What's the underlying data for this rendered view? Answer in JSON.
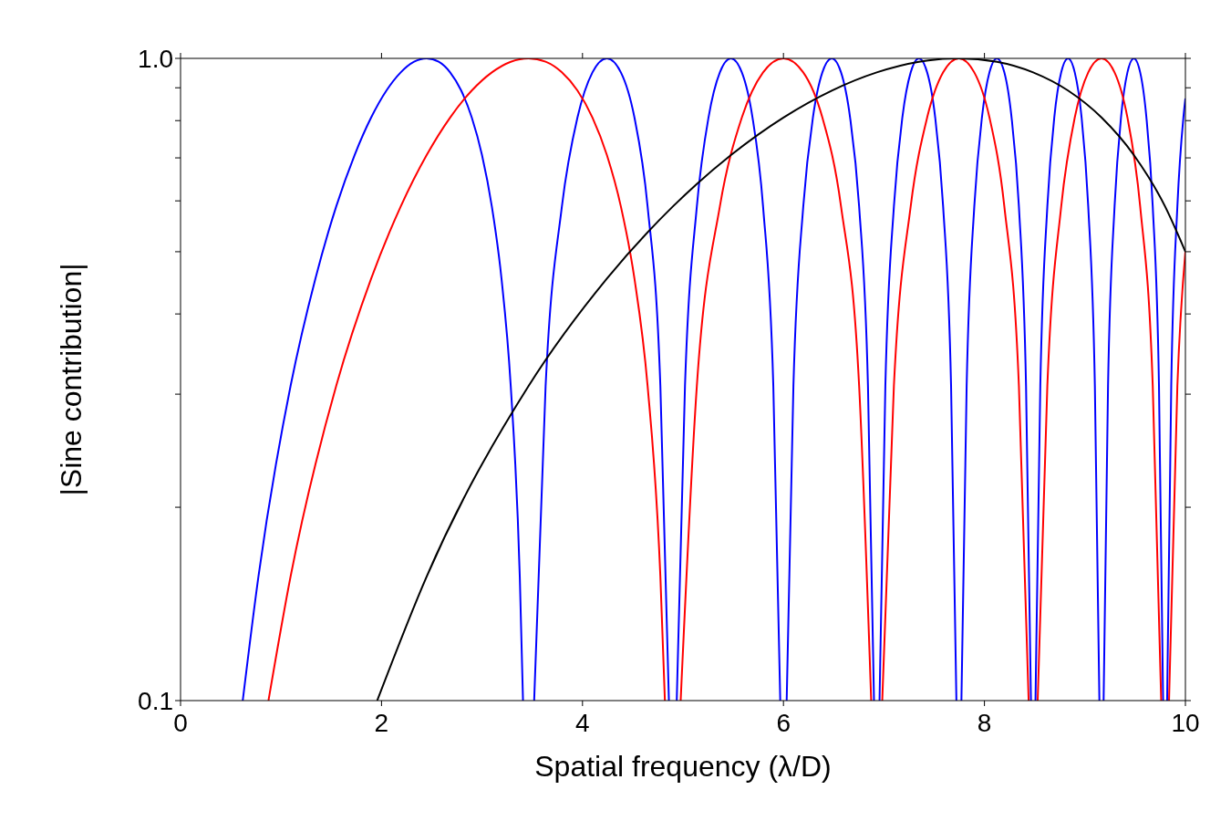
{
  "chart_data": {
    "type": "line",
    "xlabel": "Spatial frequency (λ/D)",
    "ylabel": "|Sine contribution|",
    "xlim": [
      0,
      10
    ],
    "xticks": [
      0,
      2,
      4,
      6,
      8,
      10
    ],
    "ylim": [
      0.1,
      1
    ],
    "yticks": [
      0.1,
      {
        "value": 0.2,
        "label": null
      },
      {
        "value": 0.3,
        "label": null
      },
      {
        "value": 0.4,
        "label": null
      },
      {
        "value": 0.5,
        "label": null
      },
      {
        "value": 0.6,
        "label": null
      },
      {
        "value": 0.7,
        "label": null
      },
      {
        "value": 0.8,
        "label": null
      },
      {
        "value": 0.9,
        "label": null
      },
      {
        "value": 1,
        "label": "1.0"
      }
    ],
    "log": "y",
    "marker": "none",
    "line_style": "solid",
    "series": [
      {
        "color": "#0000ff",
        "x": [
          0.619,
          0.775,
          1.095,
          1.342,
          1.549,
          1.732,
          1.897,
          2.049,
          2.191,
          2.324,
          2.449,
          2.569,
          2.683,
          2.793,
          2.898,
          3,
          3.098,
          3.194,
          3.286,
          3.376,
          3.408,
          3.464,
          3.519,
          3.633,
          3.795,
          3.95,
          4.099,
          4.243,
          4.382,
          4.517,
          4.648,
          4.775,
          4.86,
          4.899,
          4.938,
          5.02,
          5.138,
          5.254,
          5.367,
          5.477,
          5.586,
          5.692,
          5.797,
          5.899,
          5.968,
          6,
          6.032,
          6.099,
          6.197,
          6.293,
          6.387,
          6.481,
          6.573,
          6.663,
          6.753,
          6.841,
          6.901,
          6.928,
          6.956,
          7.014,
          7.099,
          7.183,
          7.266,
          7.348,
          7.43,
          7.51,
          7.589,
          7.668,
          7.721,
          7.746,
          7.771,
          7.823,
          7.899,
          7.975,
          8.05,
          8.124,
          8.198,
          8.27,
          8.343,
          8.414,
          8.463,
          8.485,
          8.508,
          8.556,
          8.626,
          8.695,
          8.764,
          8.832,
          8.899,
          8.967,
          9.033,
          9.099,
          9.144,
          9.165,
          9.186,
          9.23,
          9.295,
          9.359,
          9.423,
          9.487,
          9.55,
          9.612,
          9.675,
          9.737,
          9.778,
          9.798,
          9.818,
          9.859,
          9.92,
          9.98,
          10
        ],
        "values": [
          0.1,
          0.156,
          0.309,
          0.454,
          0.588,
          0.707,
          0.809,
          0.891,
          0.951,
          0.988,
          1,
          0.988,
          0.951,
          0.891,
          0.809,
          0.707,
          0.588,
          0.454,
          0.309,
          0.156,
          0.1,
          null,
          0.1,
          0.309,
          0.588,
          0.809,
          0.951,
          1,
          0.951,
          0.809,
          0.588,
          0.309,
          0.1,
          null,
          0.1,
          0.309,
          0.588,
          0.809,
          0.951,
          1,
          0.951,
          0.809,
          0.588,
          0.309,
          0.1,
          null,
          0.1,
          0.309,
          0.588,
          0.809,
          0.951,
          1,
          0.951,
          0.809,
          0.588,
          0.309,
          0.1,
          null,
          0.1,
          0.309,
          0.588,
          0.809,
          0.951,
          1,
          0.951,
          0.809,
          0.588,
          0.309,
          0.1,
          null,
          0.1,
          0.309,
          0.588,
          0.809,
          0.951,
          1,
          0.951,
          0.809,
          0.588,
          0.309,
          0.1,
          null,
          0.1,
          0.309,
          0.588,
          0.809,
          0.951,
          1,
          0.951,
          0.809,
          0.588,
          0.309,
          0.1,
          null,
          0.1,
          0.309,
          0.588,
          0.809,
          0.951,
          1,
          0.951,
          0.809,
          0.588,
          0.309,
          0.1,
          null,
          0.1,
          0.309,
          0.588,
          0.809,
          0.866
        ]
      },
      {
        "color": "#ff0000",
        "x": [
          0.875,
          1.095,
          1.549,
          1.897,
          2.191,
          2.449,
          2.683,
          2.898,
          3.098,
          3.286,
          3.464,
          3.633,
          3.795,
          3.95,
          4.099,
          4.243,
          4.382,
          4.517,
          4.648,
          4.775,
          4.82,
          4.899,
          4.977,
          5.138,
          5.367,
          5.586,
          5.797,
          6,
          6.197,
          6.387,
          6.573,
          6.753,
          6.873,
          6.928,
          6.983,
          7.099,
          7.266,
          7.43,
          7.589,
          7.746,
          7.899,
          8.05,
          8.198,
          8.343,
          8.44,
          8.485,
          8.53,
          8.626,
          8.764,
          8.899,
          9.033,
          9.165,
          9.295,
          9.423,
          9.55,
          9.675,
          9.759,
          9.798,
          9.837,
          9.92,
          10
        ],
        "values": [
          0.1,
          0.156,
          0.309,
          0.454,
          0.588,
          0.707,
          0.809,
          0.891,
          0.951,
          0.988,
          1,
          0.988,
          0.951,
          0.891,
          0.809,
          0.707,
          0.588,
          0.454,
          0.309,
          0.156,
          0.1,
          null,
          0.1,
          0.309,
          0.588,
          0.809,
          0.951,
          1,
          0.951,
          0.809,
          0.588,
          0.309,
          0.1,
          null,
          0.1,
          0.309,
          0.588,
          0.809,
          0.951,
          1,
          0.951,
          0.809,
          0.588,
          0.309,
          0.1,
          null,
          0.1,
          0.309,
          0.588,
          0.809,
          0.951,
          1,
          0.951,
          0.809,
          0.588,
          0.309,
          0.1,
          null,
          0.1,
          0.309,
          0.5
        ]
      },
      {
        "color": "#000000",
        "x": [
          1.957,
          2.449,
          3.464,
          4.243,
          4.899,
          5.477,
          6,
          6.481,
          6.928,
          7.348,
          7.746,
          8.124,
          8.485,
          8.832,
          9.165,
          9.487,
          9.798,
          10
        ],
        "values": [
          0.1,
          0.156,
          0.309,
          0.454,
          0.588,
          0.707,
          0.809,
          0.891,
          0.951,
          0.988,
          1,
          0.988,
          0.951,
          0.891,
          0.809,
          0.707,
          0.588,
          0.5
        ]
      }
    ]
  }
}
